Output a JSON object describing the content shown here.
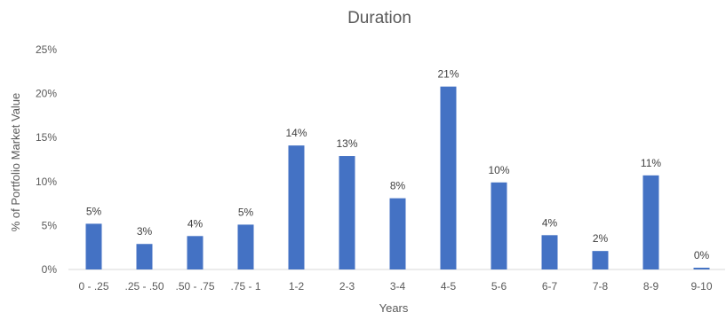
{
  "chart_data": {
    "type": "bar",
    "title": "Duration",
    "xlabel": "Years",
    "ylabel": "% of Portfolio Market  Value",
    "categories": [
      "0 - .25",
      ".25 - .50",
      ".50 - .75",
      ".75 - 1",
      "1-2",
      "2-3",
      "3-4",
      "4-5",
      "5-6",
      "6-7",
      "7-8",
      "8-9",
      "9-10"
    ],
    "values": [
      5.2,
      2.9,
      3.8,
      5.1,
      14.1,
      12.9,
      8.1,
      20.8,
      9.9,
      3.9,
      2.1,
      10.7,
      0.2
    ],
    "data_labels": [
      "5%",
      "3%",
      "4%",
      "5%",
      "14%",
      "13%",
      "8%",
      "21%",
      "10%",
      "4%",
      "2%",
      "11%",
      "0%"
    ],
    "ylim": [
      0,
      25
    ],
    "yticks": [
      0,
      5,
      10,
      15,
      20,
      25
    ],
    "ytick_labels": [
      "0%",
      "5%",
      "10%",
      "15%",
      "20%",
      "25%"
    ],
    "grid": false,
    "legend": "none",
    "bar_color": "#4472C4"
  }
}
